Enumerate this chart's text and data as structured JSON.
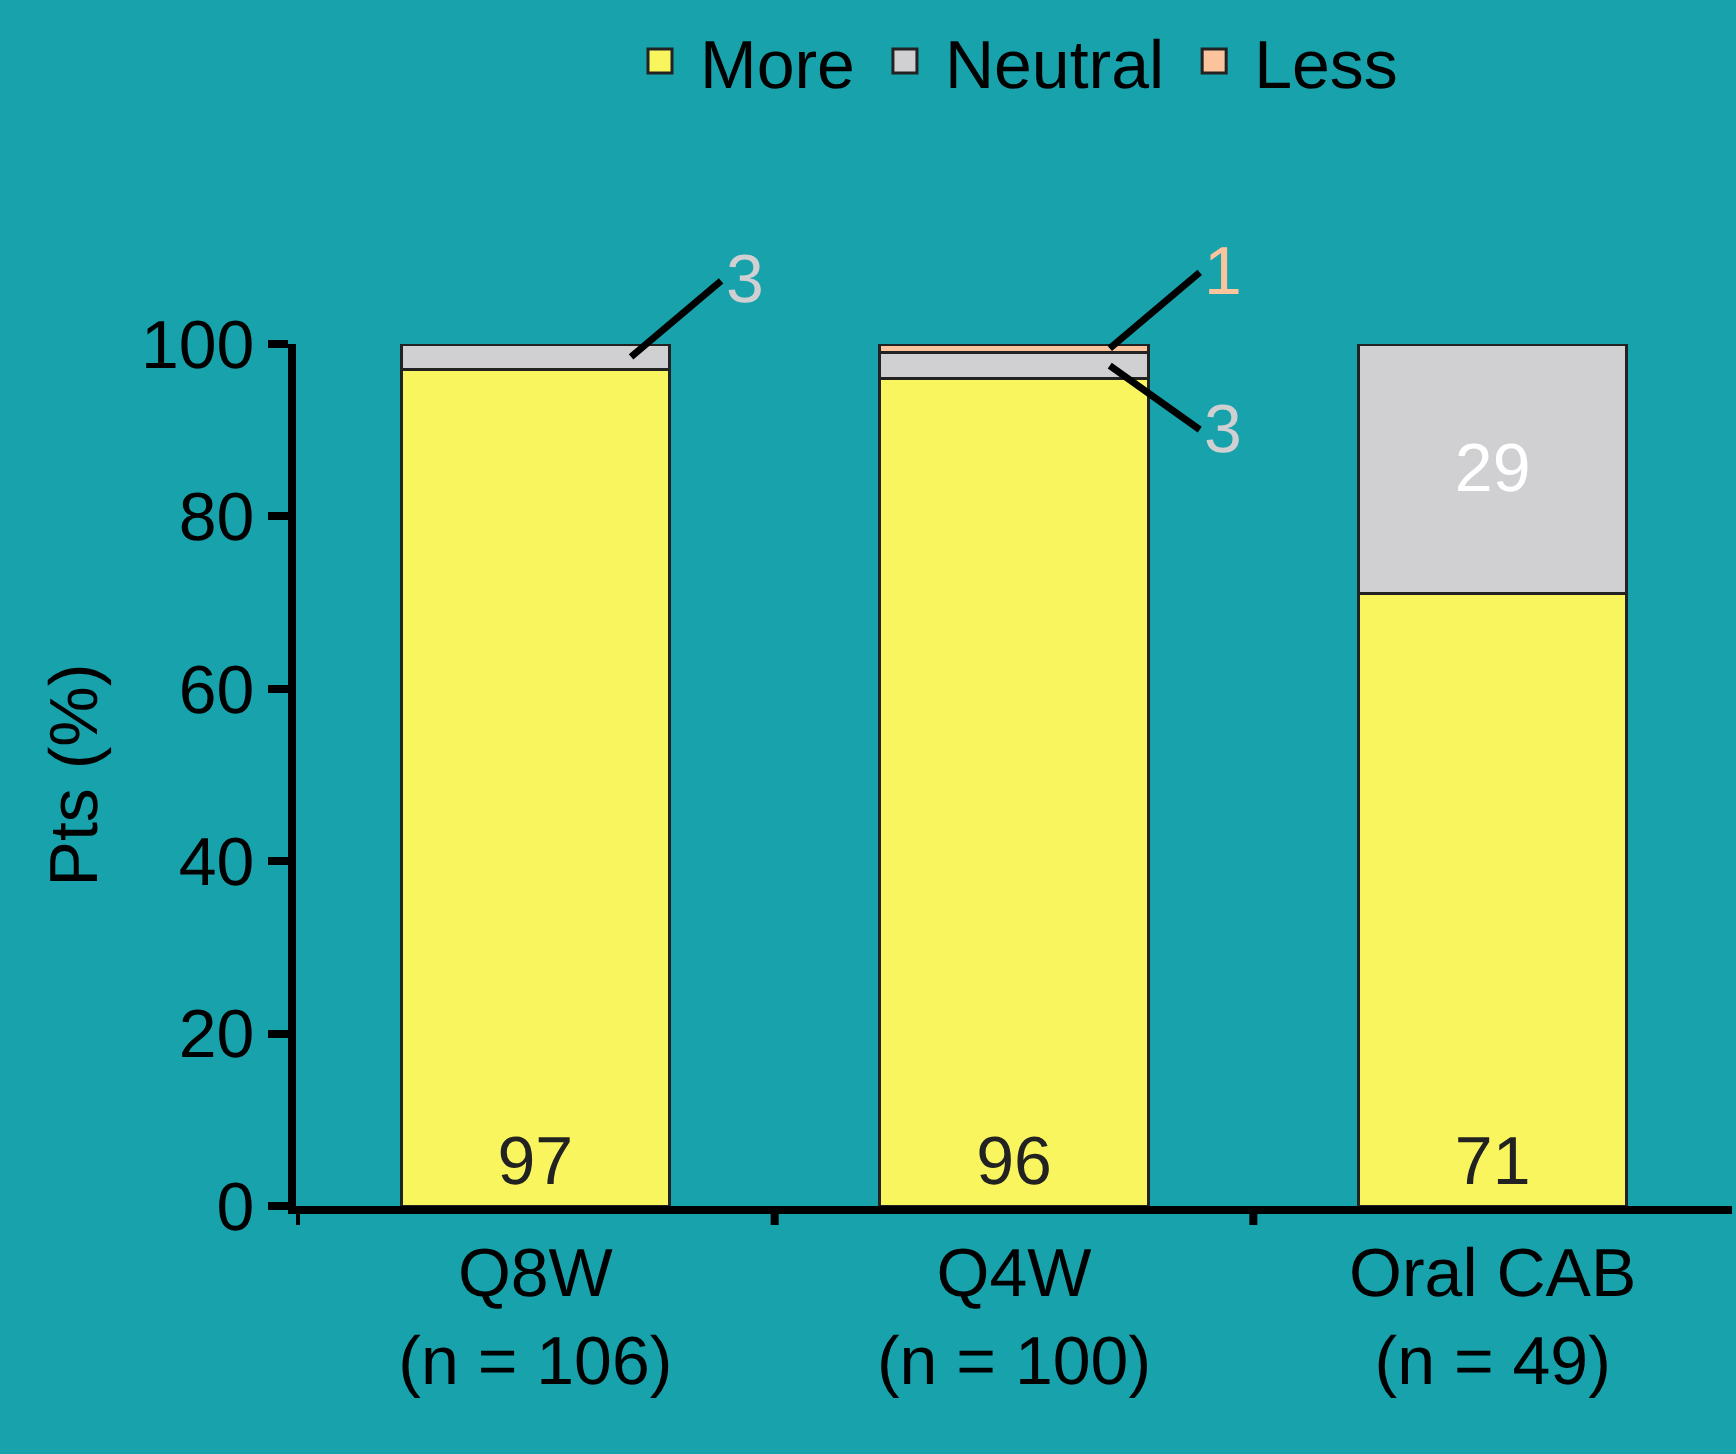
{
  "chart_data": {
    "type": "bar",
    "stacked": true,
    "ylabel": "Pts (%)",
    "categories": [
      "Q8W\n(n = 106)",
      "Q4W\n(n = 100)",
      "Oral CAB\n(n = 49)"
    ],
    "series": [
      {
        "name": "More",
        "color": "#f9f55e",
        "values": [
          97,
          96,
          71
        ],
        "value_labels": [
          "97",
          "96",
          "71"
        ]
      },
      {
        "name": "Neutral",
        "color": "#d0d0d2",
        "values": [
          3,
          3,
          29
        ],
        "value_labels": [
          "3",
          "3",
          "29"
        ]
      },
      {
        "name": "Less",
        "color": "#fbc49c",
        "values": [
          null,
          1,
          null
        ],
        "value_labels": [
          null,
          "1",
          null
        ]
      }
    ],
    "ylim": [
      0,
      100
    ],
    "yticks": [
      0,
      20,
      40,
      60,
      80,
      100
    ],
    "grid": false,
    "legend": "top"
  }
}
